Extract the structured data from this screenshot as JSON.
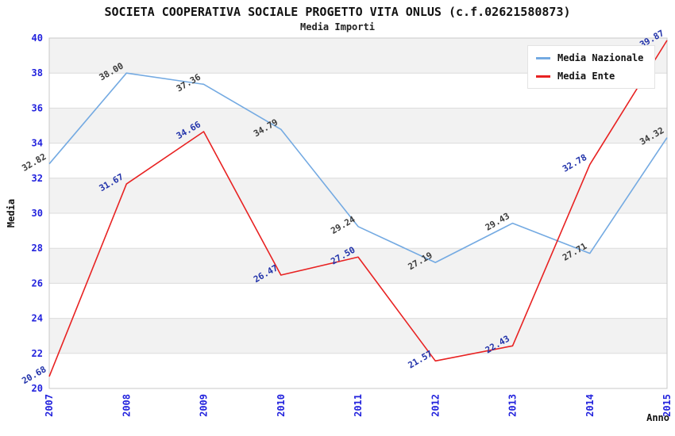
{
  "chart_data": {
    "type": "line",
    "title": "SOCIETA COOPERATIVA SOCIALE PROGETTO VITA ONLUS (c.f.02621580873)",
    "subtitle": "Media Importi",
    "xlabel": "Anno",
    "ylabel": "Media",
    "categories": [
      "2007",
      "2008",
      "2009",
      "2010",
      "2011",
      "2012",
      "2013",
      "2014",
      "2015"
    ],
    "ylim": [
      20,
      40
    ],
    "ytick_step": 2,
    "grid": true,
    "banded_background": true,
    "legend_position": "top-right",
    "series": [
      {
        "name": "Media Nazionale",
        "color": "#74aae2",
        "label_color": "#3c3c3c",
        "values": [
          32.82,
          38.0,
          37.36,
          34.79,
          29.24,
          27.19,
          29.43,
          27.71,
          34.32
        ]
      },
      {
        "name": "Media Ente",
        "color": "#e82222",
        "label_color": "#2233aa",
        "values": [
          20.68,
          31.67,
          34.66,
          26.47,
          27.5,
          21.57,
          22.43,
          32.78,
          39.87
        ]
      }
    ]
  },
  "colors": {
    "tick_label": "#2222dd",
    "axis_title": "#111111",
    "band": "#f2f2f2",
    "gridline": "#dcdcdc",
    "plot_border": "#c8c8c8",
    "plot_background": "#ffffff"
  }
}
